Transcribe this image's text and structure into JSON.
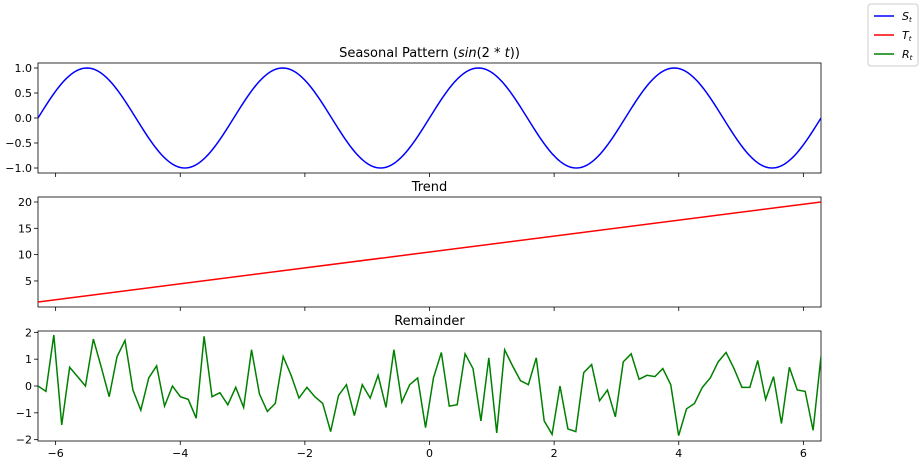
{
  "chart_data": [
    {
      "type": "line",
      "title": "Seasonal Pattern (sin(2 * t))",
      "title_prefix": "Seasonal Pattern (",
      "title_math": "sin",
      "title_math2": "(2 * ",
      "title_math3": "t",
      "title_suffix": "))",
      "xlim": [
        -6.283,
        6.283
      ],
      "ylim": [
        -1.1,
        1.1
      ],
      "y_ticks": [
        1.0,
        0.5,
        0.0,
        -0.5,
        -1.0
      ],
      "y_tick_labels": [
        "1.0",
        "0.5",
        "0.0",
        "−0.5",
        "−1.0"
      ],
      "function": "sin(2*t)",
      "series": [
        {
          "name": "S_t",
          "color": "#0000ff"
        }
      ]
    },
    {
      "type": "line",
      "title": "Trend",
      "xlim": [
        -6.283,
        6.283
      ],
      "ylim": [
        0.05,
        20.95
      ],
      "y_ticks": [
        5,
        10,
        15,
        20
      ],
      "y_tick_labels": [
        "5",
        "10",
        "15",
        "20"
      ],
      "line_start": [
        -6.283,
        1.0
      ],
      "line_end": [
        6.283,
        20.0
      ],
      "series": [
        {
          "name": "T_t",
          "color": "#ff0000"
        }
      ]
    },
    {
      "type": "line",
      "title": "Remainder",
      "xlim": [
        -6.283,
        6.283
      ],
      "ylim": [
        -2.05,
        2.05
      ],
      "y_ticks": [
        2,
        1,
        0,
        -1,
        -2
      ],
      "y_tick_labels": [
        "2",
        "1",
        "0",
        "−1",
        "−2"
      ],
      "x_ticks": [
        -6,
        -4,
        -2,
        0,
        2,
        4,
        6
      ],
      "x_tick_labels": [
        "−6",
        "−4",
        "−2",
        "0",
        "2",
        "4",
        "6"
      ],
      "x_start": -6.283,
      "x_end": 6.283,
      "values": [
        0.0,
        -0.2,
        1.9,
        -1.45,
        0.7,
        0.35,
        0.0,
        1.75,
        0.7,
        -0.4,
        1.1,
        1.7,
        -0.15,
        -0.9,
        0.3,
        0.75,
        -0.75,
        0.0,
        -0.4,
        -0.5,
        -1.2,
        1.85,
        -0.4,
        -0.25,
        -0.7,
        -0.05,
        -0.8,
        1.35,
        -0.3,
        -0.95,
        -0.65,
        1.1,
        0.4,
        -0.45,
        -0.05,
        -0.4,
        -0.65,
        -1.7,
        -0.35,
        0.05,
        -1.1,
        0.05,
        -0.45,
        0.4,
        -0.8,
        1.35,
        -0.6,
        0.05,
        0.3,
        -1.55,
        0.3,
        1.25,
        -0.75,
        -0.7,
        1.2,
        0.65,
        -1.3,
        1.05,
        -1.75,
        1.35,
        0.75,
        0.2,
        0.05,
        1.05,
        -1.3,
        -1.8,
        0.0,
        -1.6,
        -1.7,
        0.5,
        0.8,
        -0.55,
        -0.15,
        -1.15,
        0.9,
        1.2,
        0.25,
        0.4,
        0.35,
        0.65,
        0.05,
        -1.85,
        -0.85,
        -0.65,
        -0.05,
        0.3,
        0.9,
        1.25,
        0.65,
        -0.05,
        -0.05,
        0.95,
        -0.5,
        0.35,
        -1.4,
        0.7,
        -0.15,
        -0.2,
        -1.65,
        1.1
      ],
      "series": [
        {
          "name": "R_t",
          "color": "#008000"
        }
      ]
    }
  ],
  "legend": {
    "placement": "top-right",
    "entries": [
      {
        "base": "S",
        "sub": "t",
        "color": "#0000ff"
      },
      {
        "base": "T",
        "sub": "t",
        "color": "#ff0000"
      },
      {
        "base": "R",
        "sub": "t",
        "color": "#008000"
      }
    ]
  }
}
